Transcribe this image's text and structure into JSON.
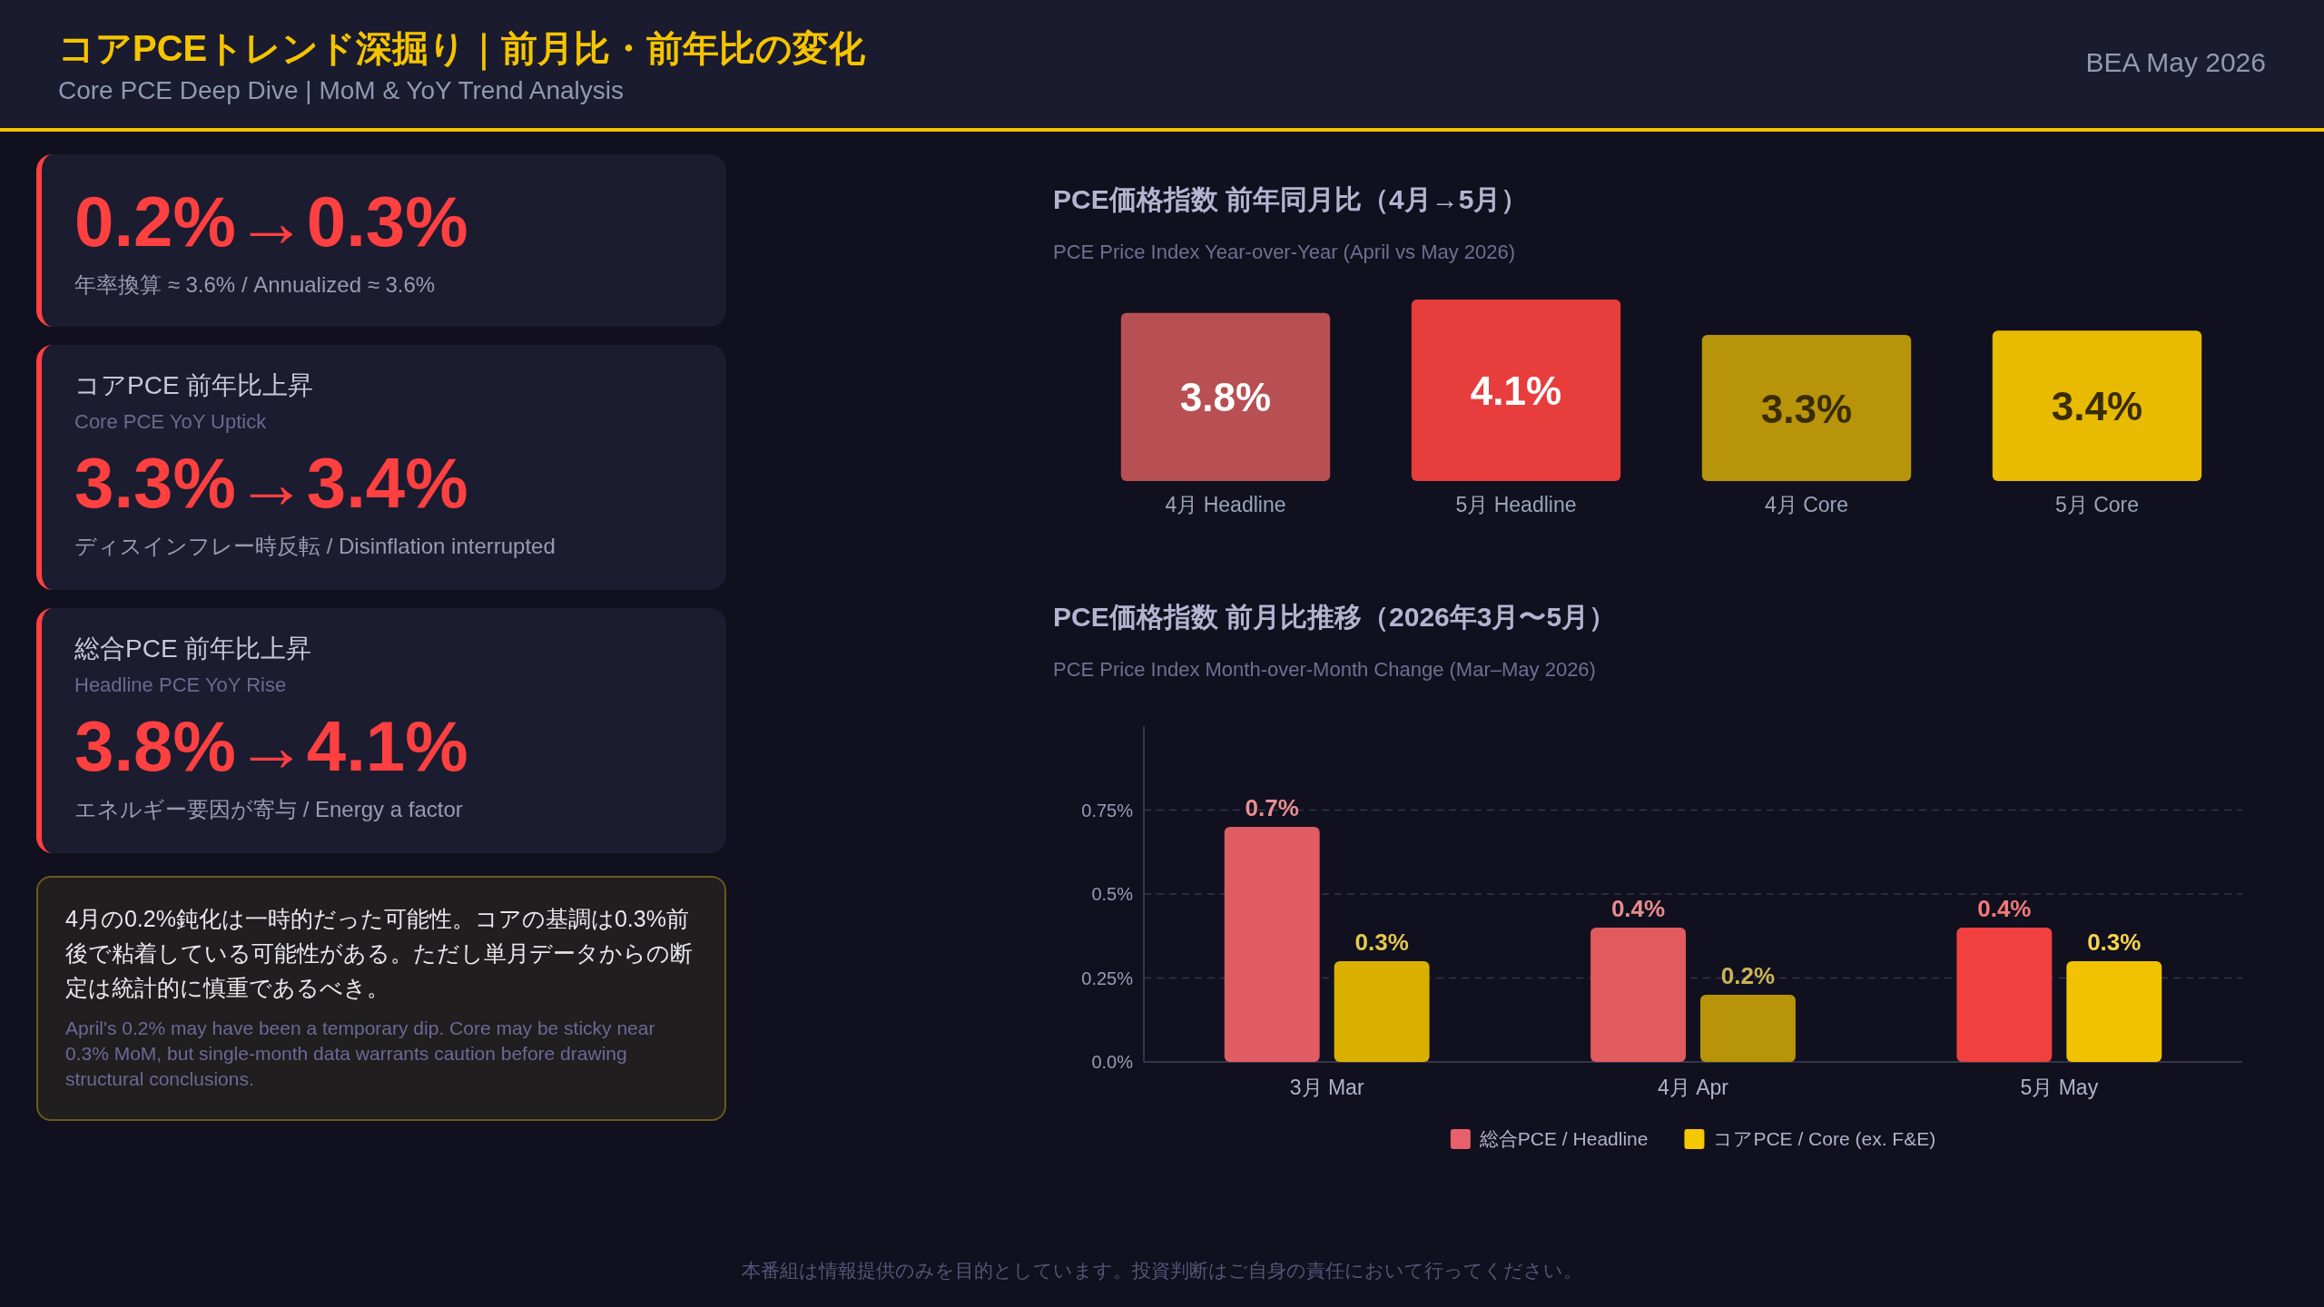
{
  "chart_data": [
    {
      "type": "other",
      "title": "コアPCEトレンド深掘り｜前月比・前年比の変化",
      "subtitle": "Core PCE Deep Dive | MoM & YoY Trend Analysis",
      "annotations": [
        "BEA May 2026"
      ]
    },
    {
      "type": "other",
      "annotations": [
        "0.2%→0.3%",
        "年率換算 ≈ 3.6% / Annualized ≈ 3.6%"
      ]
    },
    {
      "type": "other",
      "title": "コアPCE 前年比上昇",
      "subtitle": "Core PCE YoY Uptick",
      "annotations": [
        "3.3%→3.4%",
        "ディスインフレー時反転 / Disinflation interrupted"
      ]
    },
    {
      "type": "other",
      "title": "総合PCE 前年比上昇",
      "subtitle": "Headline PCE YoY Rise",
      "annotations": [
        "3.8%→4.1%",
        "エネルギー要因が寄与 / Energy a factor"
      ]
    },
    {
      "type": "other",
      "annotations": [
        "4月の0.2%鈍化は一時的だった可能性。コアの基調は0.3%前後で粘着している可能性がある。ただし単月データからの断定は統計的に慎重であるべき。",
        "April's 0.2% may have been a temporary dip. Core may be sticky near 0.3% MoM, but single-month data warrants caution before drawing structural conclusions."
      ]
    },
    {
      "type": "bar",
      "title": "PCE価格指数 前年同月比（4月→5月）",
      "subtitle": "PCE Price Index Year-over-Year (April vs May 2026)",
      "categories": [
        "4月 Headline",
        "5月 Headline",
        "4月 Core",
        "5月 Core"
      ],
      "colors": [
        "#b84f52",
        "#e83d3d",
        "#b8940a",
        "#e8bb00"
      ],
      "values": [
        3.8,
        4.1,
        3.3,
        3.4
      ],
      "value_labels": [
        "3.8%",
        "4.1%",
        "3.3%",
        "3.4%"
      ]
    },
    {
      "type": "bar",
      "title": "PCE価格指数 前月比推移（2026年3月〜5月）",
      "subtitle": "PCE Price Index Month-over-Month Change (Mar–May 2026)",
      "categories": [
        "3月 Mar",
        "4月 Apr",
        "5月 May"
      ],
      "ylim": [
        0,
        1
      ],
      "yticks": [
        {
          "value": 0,
          "label": "0.0%"
        },
        {
          "value": 0.25,
          "label": "0.25%"
        },
        {
          "value": 0.5,
          "label": "0.5%"
        },
        {
          "value": 0.75,
          "label": "0.75%"
        }
      ],
      "grid": "y",
      "legend": "bottom",
      "series": [
        {
          "name": "総合PCE / Headline",
          "color": "#e8606a",
          "colors": [
            "#e05c63",
            "#e05a5e",
            "#f04040"
          ],
          "values": [
            0.7,
            0.4,
            0.4
          ],
          "value_labels": [
            "0.7%",
            "0.4%",
            "0.4%"
          ]
        },
        {
          "name": "コアPCE / Core (ex. F&E)",
          "color": "#f5c800",
          "colors": [
            "#d9b000",
            "#b8940a",
            "#f2c200"
          ],
          "values": [
            0.3,
            0.2,
            0.3
          ],
          "value_labels": [
            "0.3%",
            "0.2%",
            "0.3%"
          ]
        }
      ]
    },
    {
      "type": "other",
      "annotations": [
        "本番組は情報提供のみを目的としています。投資判断はご自身の責任において行ってください。"
      ]
    }
  ]
}
